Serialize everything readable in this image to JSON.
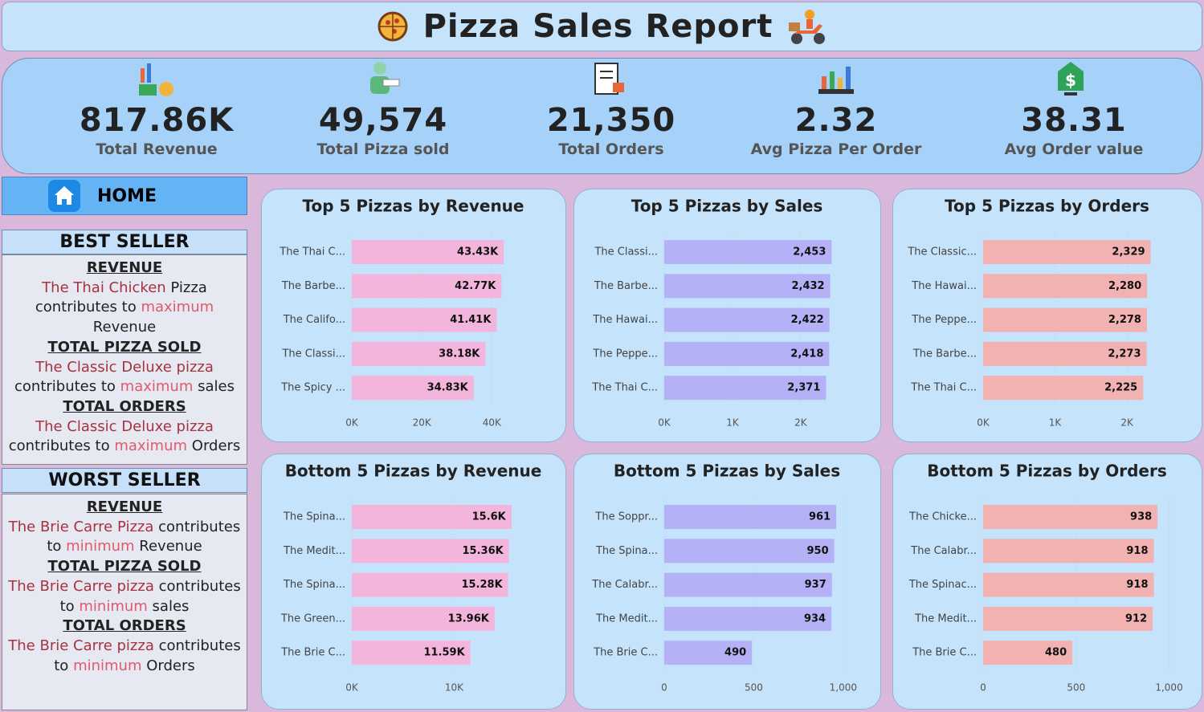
{
  "header": {
    "title": "Pizza Sales Report"
  },
  "kpis": [
    {
      "value": "817.86K",
      "label": "Total Revenue"
    },
    {
      "value": "49,574",
      "label": "Total Pizza sold"
    },
    {
      "value": "21,350",
      "label": "Total Orders"
    },
    {
      "value": "2.32",
      "label": "Avg Pizza Per Order"
    },
    {
      "value": "38.31",
      "label": "Avg Order value"
    }
  ],
  "sidebar": {
    "home": "HOME",
    "best_seller": {
      "title": "BEST SELLER",
      "sections": [
        {
          "heading": "REVENUE",
          "parts": [
            "The Thai Chicken",
            "Pizza contributes to",
            "maximum",
            "Revenue"
          ]
        },
        {
          "heading": "TOTAL PIZZA SOLD",
          "parts": [
            "The Classic Deluxe pizza",
            "contributes to",
            "maximum",
            "sales"
          ]
        },
        {
          "heading": "TOTAL ORDERS",
          "parts": [
            "The Classic Deluxe pizza",
            "contributes to",
            "maximum",
            "Orders"
          ]
        }
      ]
    },
    "worst_seller": {
      "title": "WORST SELLER",
      "sections": [
        {
          "heading": "REVENUE",
          "parts": [
            "The Brie Carre Pizza",
            "contributes to",
            "minimum",
            "Revenue"
          ]
        },
        {
          "heading": "TOTAL PIZZA SOLD",
          "parts": [
            "The Brie Carre pizza",
            "contributes to",
            "minimum",
            "sales"
          ]
        },
        {
          "heading": "TOTAL ORDERS",
          "parts": [
            "The Brie Carre pizza",
            "contributes to",
            "minimum",
            "Orders"
          ]
        }
      ]
    }
  },
  "chart_data": [
    {
      "type": "bar",
      "orientation": "horizontal",
      "title": "Top 5 Pizzas by Revenue",
      "color": "#f4b5dd",
      "categories": [
        "The Thai C...",
        "The Barbe...",
        "The Califo...",
        "The Classi...",
        "The Spicy ..."
      ],
      "values": [
        43430,
        42770,
        41410,
        38180,
        34830
      ],
      "value_labels": [
        "43.43K",
        "42.77K",
        "41.41K",
        "38.18K",
        "34.83K"
      ],
      "xlim": [
        0,
        57600
      ],
      "xticks": [
        {
          "value": 0,
          "label": "0K"
        },
        {
          "value": 20000,
          "label": "20K"
        },
        {
          "value": 40000,
          "label": "40K"
        }
      ],
      "grid": true
    },
    {
      "type": "bar",
      "orientation": "horizontal",
      "title": "Top 5 Pizzas by Sales",
      "color": "#b5b1f7",
      "categories": [
        "The Classi...",
        "The Barbe...",
        "The Hawai...",
        "The Peppe...",
        "The Thai C..."
      ],
      "values": [
        2453,
        2432,
        2422,
        2418,
        2371
      ],
      "value_labels": [
        "2,453",
        "2,432",
        "2,422",
        "2,418",
        "2,371"
      ],
      "xlim": [
        0,
        2990
      ],
      "xticks": [
        {
          "value": 0,
          "label": "0K"
        },
        {
          "value": 1000,
          "label": "1K"
        },
        {
          "value": 2000,
          "label": "2K"
        }
      ],
      "grid": true
    },
    {
      "type": "bar",
      "orientation": "horizontal",
      "title": "Top 5 Pizzas by Orders",
      "color": "#f2b2b2",
      "categories": [
        "The Classic...",
        "The Hawai...",
        "The Peppe...",
        "The Barbe...",
        "The Thai C..."
      ],
      "values": [
        2329,
        2280,
        2278,
        2273,
        2225
      ],
      "value_labels": [
        "2,329",
        "2,280",
        "2,278",
        "2,273",
        "2,225"
      ],
      "xlim": [
        0,
        2870
      ],
      "xticks": [
        {
          "value": 0,
          "label": "0K"
        },
        {
          "value": 1000,
          "label": "1K"
        },
        {
          "value": 2000,
          "label": "2K"
        }
      ],
      "grid": true
    },
    {
      "type": "bar",
      "orientation": "horizontal",
      "title": "Bottom 5 Pizzas by Revenue",
      "color": "#f4b5dd",
      "categories": [
        "The Spina...",
        "The Medit...",
        "The Spina...",
        "The Green...",
        "The Brie C..."
      ],
      "values": [
        15600,
        15360,
        15280,
        13960,
        11590
      ],
      "value_labels": [
        "15.6K",
        "15.36K",
        "15.28K",
        "13.96K",
        "11.59K"
      ],
      "xlim": [
        0,
        19700
      ],
      "xticks": [
        {
          "value": 0,
          "label": "0K"
        },
        {
          "value": 10000,
          "label": "10K"
        }
      ],
      "grid": true
    },
    {
      "type": "bar",
      "orientation": "horizontal",
      "title": "Bottom 5 Pizzas by Sales",
      "color": "#b5b1f7",
      "categories": [
        "The Soppr...",
        "The Spina...",
        "The Calabr...",
        "The Medit...",
        "The Brie C..."
      ],
      "values": [
        961,
        950,
        937,
        934,
        490
      ],
      "xlim": [
        0,
        1140
      ],
      "xticks": [
        0,
        500,
        {
          "value": 1000,
          "label": "1,000"
        }
      ],
      "grid": true
    },
    {
      "type": "bar",
      "orientation": "horizontal",
      "title": "Bottom 5 Pizzas by Orders",
      "color": "#f2b2b2",
      "categories": [
        "The Chicke...",
        "The Calabr...",
        "The Spinac...",
        "The Medit...",
        "The Brie C..."
      ],
      "values": [
        938,
        918,
        918,
        912,
        480
      ],
      "xlim": [
        0,
        1110
      ],
      "xticks": [
        0,
        500,
        {
          "value": 1000,
          "label": "1,000"
        }
      ],
      "grid": true
    }
  ]
}
